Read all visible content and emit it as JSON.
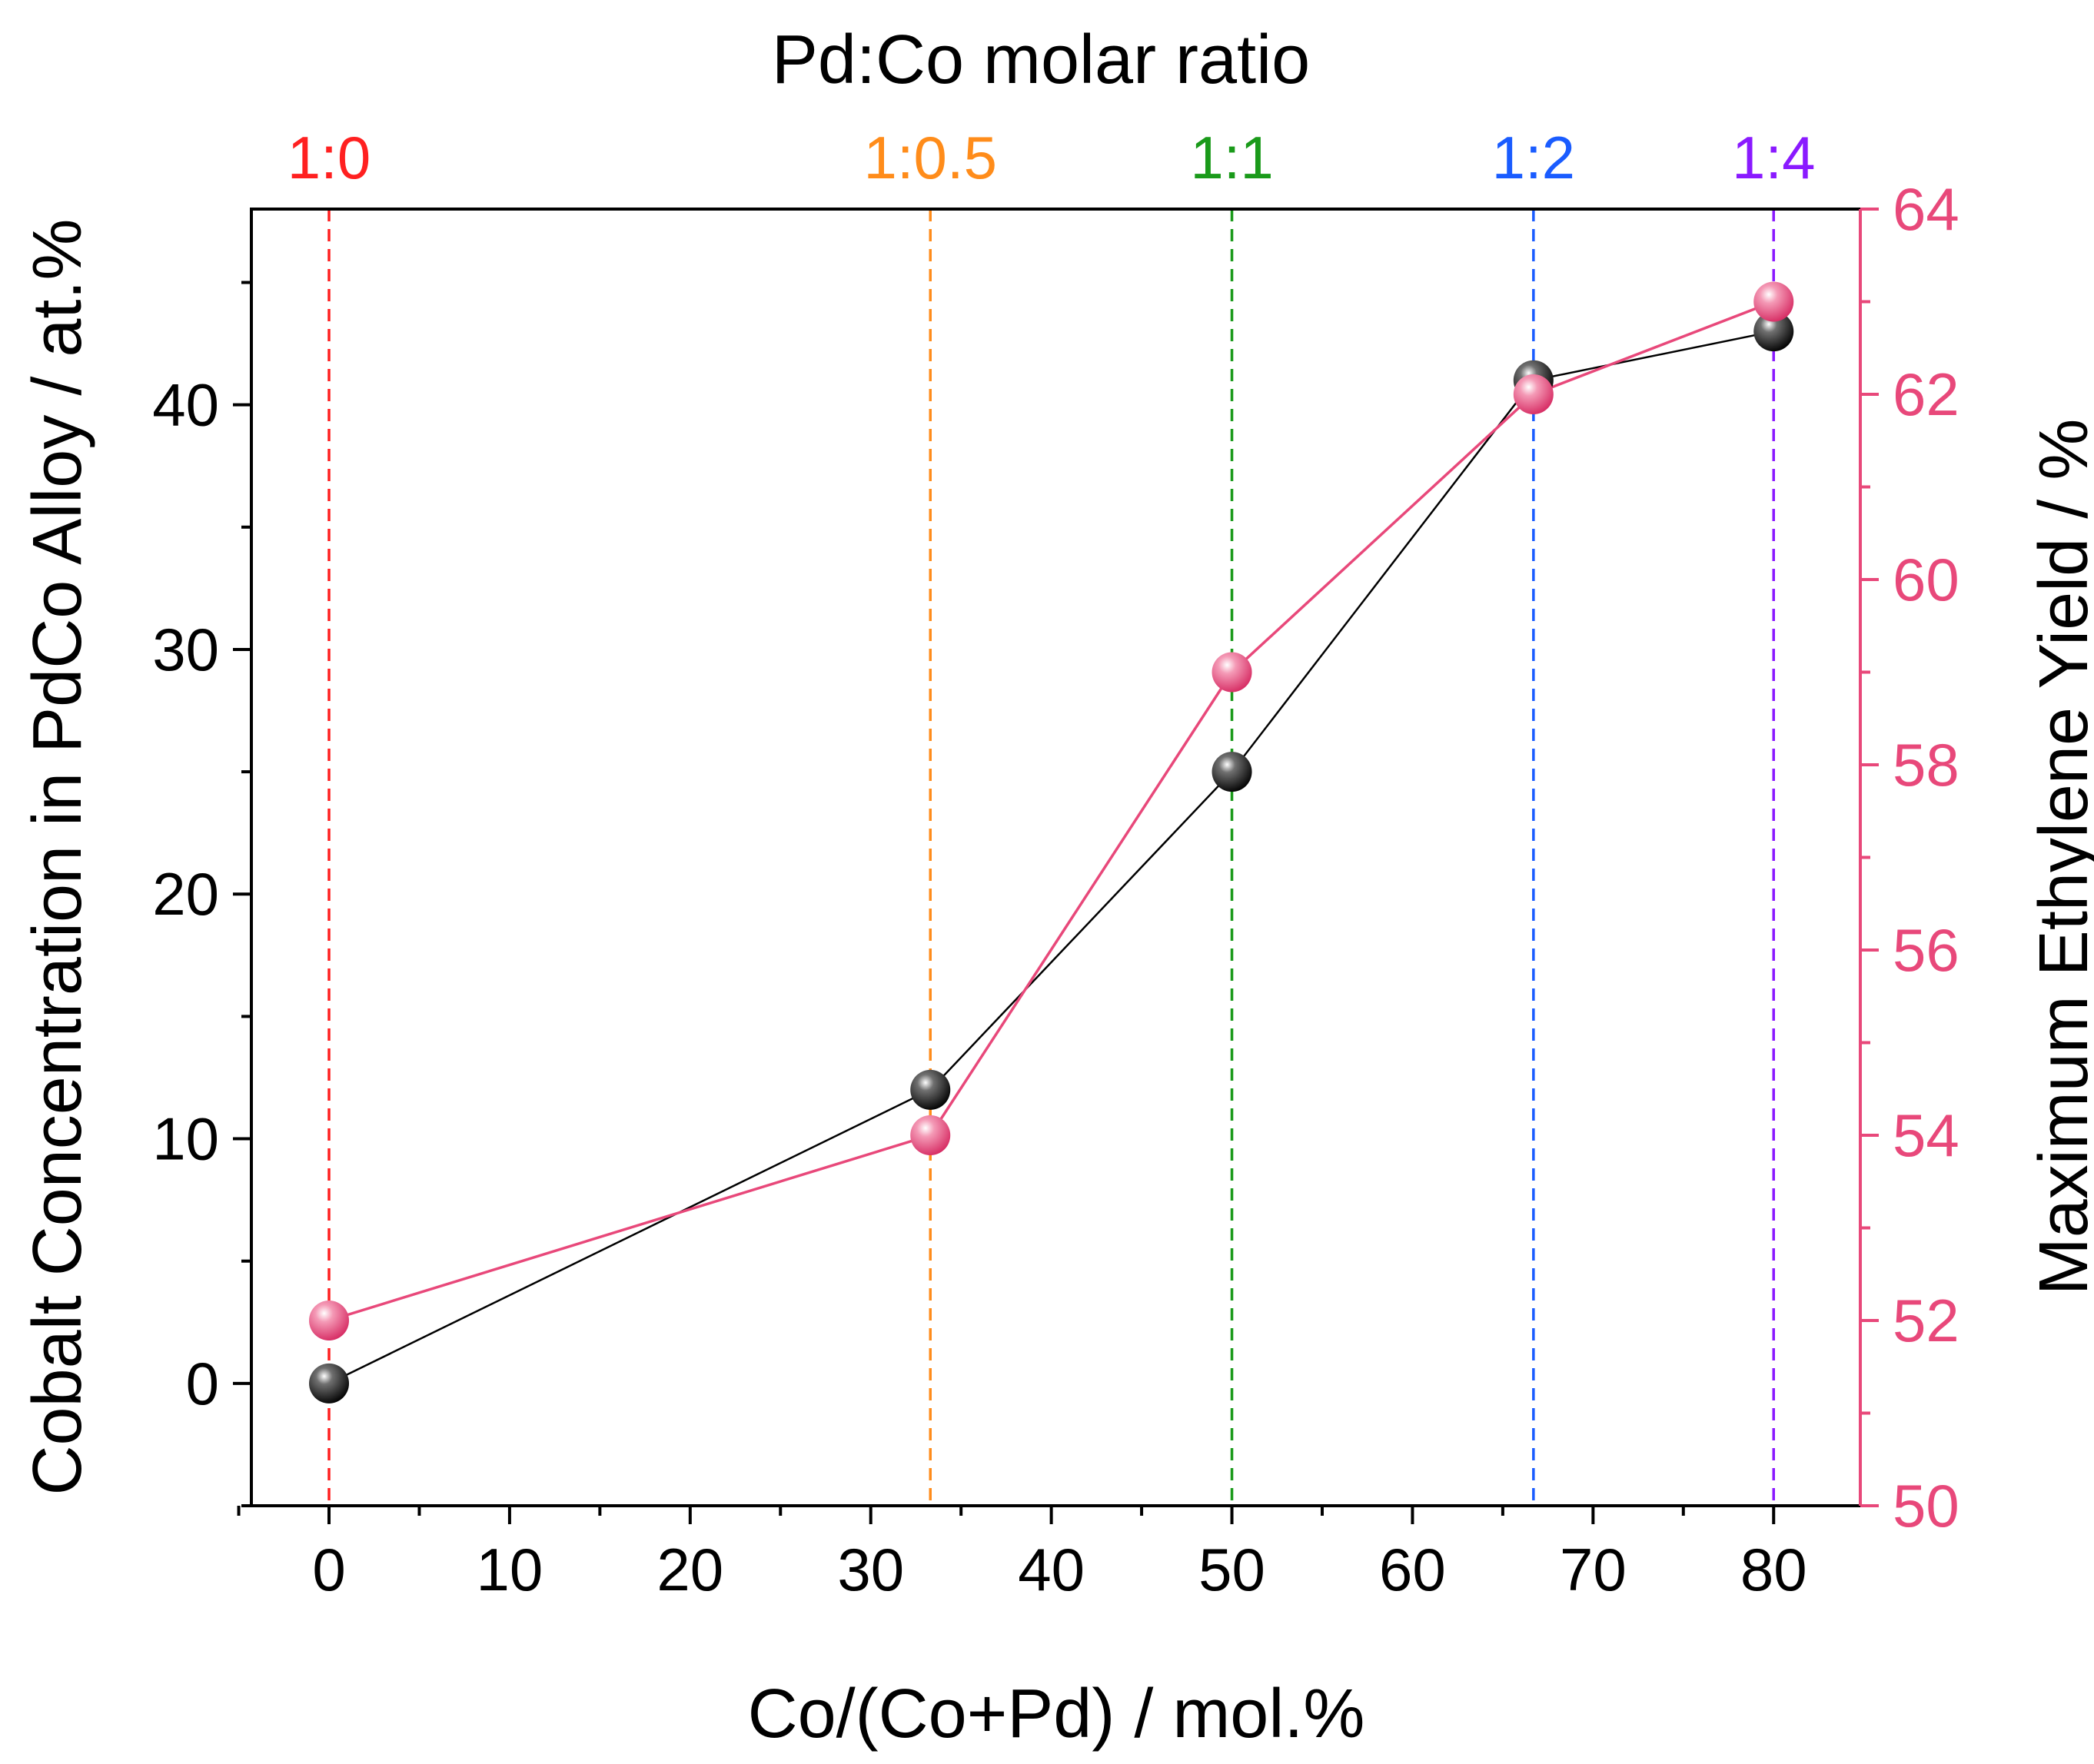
{
  "chart_data": {
    "type": "line",
    "top_axis_title": "Pd:Co molar ratio",
    "xlabel": "Co/(Co+Pd) / mol.%",
    "ylabel": "Cobalt Concentration in PdCo Alloy / at.%",
    "y2label": "Maximum Ethylene Yield / %",
    "xlim": [
      -4.3,
      84.8
    ],
    "ylim": [
      -5,
      48
    ],
    "y2lim": [
      50,
      64
    ],
    "x_ticks": [
      0,
      10,
      20,
      30,
      40,
      50,
      60,
      70,
      80
    ],
    "x_tick_labels": [
      "0",
      "10",
      "20",
      "30",
      "40",
      "50",
      "60",
      "70",
      "80"
    ],
    "y_ticks": [
      0,
      10,
      20,
      30,
      40
    ],
    "y_tick_labels": [
      "0",
      "10",
      "20",
      "30",
      "40"
    ],
    "y2_ticks": [
      50,
      52,
      54,
      56,
      58,
      60,
      62,
      64
    ],
    "y2_tick_labels": [
      "50",
      "52",
      "54",
      "56",
      "58",
      "60",
      "62",
      "64"
    ],
    "ratio_markers": [
      {
        "label": "1:0",
        "x": 0,
        "color": "#ff2020"
      },
      {
        "label": "1:0.5",
        "x": 33.3,
        "color": "#ff8c1a"
      },
      {
        "label": "1:1",
        "x": 50,
        "color": "#1a9a1a"
      },
      {
        "label": "1:2",
        "x": 66.7,
        "color": "#1a5cff"
      },
      {
        "label": "1:4",
        "x": 80,
        "color": "#8a1aff"
      }
    ],
    "series": [
      {
        "name": "Cobalt Concentration in PdCo Alloy",
        "axis": "left",
        "color": "#000000",
        "x": [
          0,
          33.3,
          50,
          66.7,
          80
        ],
        "values": [
          0,
          12,
          25,
          41,
          43
        ]
      },
      {
        "name": "Maximum Ethylene Yield",
        "axis": "right",
        "color": "#e8487a",
        "x": [
          0,
          33.3,
          50,
          66.7,
          80
        ],
        "values": [
          52,
          54,
          59,
          62,
          63
        ]
      }
    ],
    "colors": {
      "axis": "#000000",
      "right_axis": "#e8487a"
    }
  }
}
